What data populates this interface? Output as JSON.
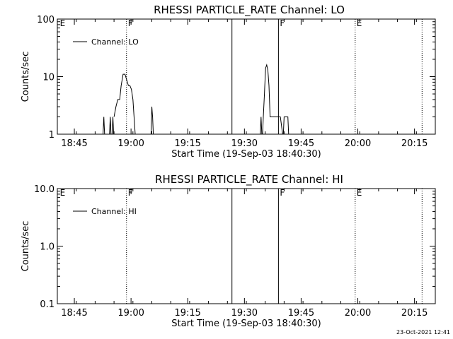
{
  "window": {
    "title": "RHESSI PARTICLE_RATE"
  },
  "footer": {
    "timestamp": "23-Oct-2021 12:41"
  },
  "chart_data": [
    {
      "type": "line",
      "title": "RHESSI PARTICLE_RATE Channel: LO",
      "xlabel": "Start Time (19-Sep-03 18:40:30)",
      "ylabel": "Counts/sec",
      "y_scale": "log",
      "ylim": [
        1,
        100
      ],
      "xlim_minutes_after_start": [
        0,
        100
      ],
      "x_tick_labels": [
        "18:45",
        "19:00",
        "19:15",
        "19:30",
        "19:45",
        "20:00",
        "20:15"
      ],
      "x_tick_minutes_after_start": [
        4.5,
        19.5,
        34.5,
        49.5,
        64.5,
        79.5,
        94.5
      ],
      "y_tick_labels": [
        "1",
        "10",
        "100"
      ],
      "y_tick_values": [
        1,
        10,
        100
      ],
      "legend": {
        "placement": "top-left",
        "entries": [
          "Channel: LO"
        ]
      },
      "markers": [
        {
          "label": "E",
          "time": 0.3,
          "style": "none"
        },
        {
          "label": "F",
          "time": 18.3,
          "style": "dotted"
        },
        {
          "label": "",
          "time": 46.2,
          "style": "solid"
        },
        {
          "label": "F",
          "time": 58.5,
          "style": "solid"
        },
        {
          "label": "E",
          "time": 78.8,
          "style": "dotted"
        },
        {
          "label": "",
          "time": 96.5,
          "style": "dotted"
        }
      ],
      "series": [
        {
          "name": "Channel: LO",
          "segments": [
            [
              [
                12.1,
                1
              ],
              [
                12.3,
                2
              ],
              [
                12.5,
                1
              ]
            ],
            [
              [
                13.8,
                1
              ],
              [
                14.0,
                2
              ],
              [
                14.2,
                1
              ]
            ],
            [
              [
                14.5,
                1
              ],
              [
                14.7,
                2
              ],
              [
                14.9,
                1
              ]
            ],
            [
              [
                15.0,
                2
              ],
              [
                15.5,
                3
              ],
              [
                16.0,
                4
              ],
              [
                16.5,
                4
              ],
              [
                16.9,
                7
              ],
              [
                17.4,
                11
              ],
              [
                17.9,
                11
              ],
              [
                18.3,
                9
              ],
              [
                18.8,
                7
              ],
              [
                19.2,
                7
              ],
              [
                19.6,
                6
              ],
              [
                20.0,
                4
              ],
              [
                20.3,
                2
              ],
              [
                20.6,
                1
              ]
            ],
            [
              [
                24.8,
                1
              ],
              [
                25.0,
                3
              ],
              [
                25.2,
                2
              ],
              [
                25.4,
                1
              ]
            ],
            [
              [
                53.7,
                1
              ],
              [
                53.9,
                2
              ],
              [
                54.1,
                1
              ]
            ],
            [
              [
                54.3,
                1
              ],
              [
                54.5,
                2
              ],
              [
                54.8,
                5
              ],
              [
                55.1,
                14
              ],
              [
                55.4,
                16
              ],
              [
                55.7,
                13
              ],
              [
                56.0,
                7
              ],
              [
                56.3,
                2
              ],
              [
                57.0,
                2
              ],
              [
                57.8,
                2
              ],
              [
                58.4,
                2
              ],
              [
                59.0,
                2
              ],
              [
                59.6,
                1
              ]
            ],
            [
              [
                59.8,
                1
              ],
              [
                60.0,
                2
              ],
              [
                60.5,
                2
              ],
              [
                61.0,
                2
              ],
              [
                61.2,
                1
              ]
            ]
          ]
        }
      ]
    },
    {
      "type": "line",
      "title": "RHESSI PARTICLE_RATE Channel: HI",
      "xlabel": "Start Time (19-Sep-03 18:40:30)",
      "ylabel": "Counts/sec",
      "y_scale": "log",
      "ylim": [
        0.1,
        10
      ],
      "xlim_minutes_after_start": [
        0,
        100
      ],
      "x_tick_labels": [
        "18:45",
        "19:00",
        "19:15",
        "19:30",
        "19:45",
        "20:00",
        "20:15"
      ],
      "x_tick_minutes_after_start": [
        4.5,
        19.5,
        34.5,
        49.5,
        64.5,
        79.5,
        94.5
      ],
      "y_tick_labels": [
        "0.1",
        "1.0",
        "10.0"
      ],
      "y_tick_values": [
        0.1,
        1,
        10
      ],
      "legend": {
        "placement": "top-left",
        "entries": [
          "Channel: HI"
        ]
      },
      "markers": [
        {
          "label": "E",
          "time": 0.3,
          "style": "none"
        },
        {
          "label": "F",
          "time": 18.3,
          "style": "dotted"
        },
        {
          "label": "",
          "time": 46.2,
          "style": "solid"
        },
        {
          "label": "F",
          "time": 58.5,
          "style": "solid"
        },
        {
          "label": "E",
          "time": 78.8,
          "style": "dotted"
        },
        {
          "label": "",
          "time": 96.5,
          "style": "dotted"
        }
      ],
      "series": [
        {
          "name": "Channel: HI",
          "segments": []
        }
      ]
    }
  ]
}
